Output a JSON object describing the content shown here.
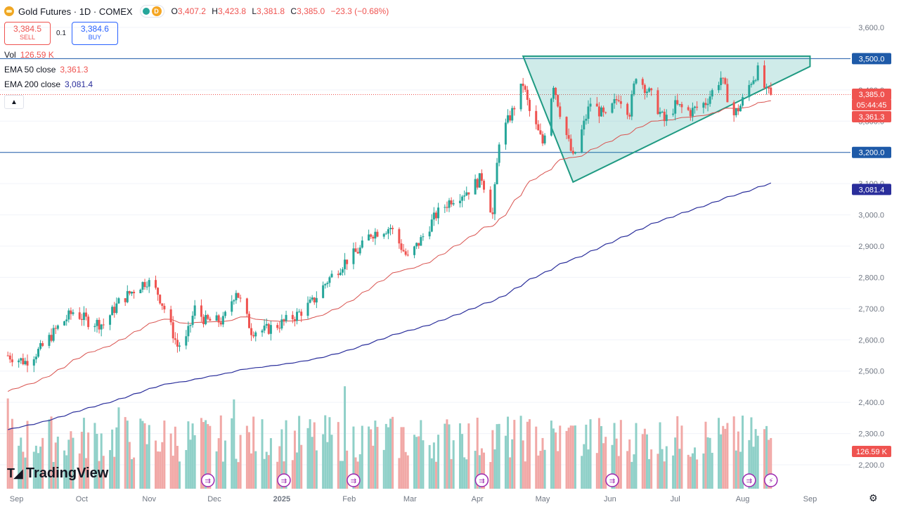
{
  "header": {
    "title": "Gold Futures · 1D · COMEX",
    "delay_badge": "D",
    "ohlc": {
      "o_label": "O",
      "o": "3,407.2",
      "h_label": "H",
      "h": "3,423.8",
      "l_label": "L",
      "l": "3,381.8",
      "c_label": "C",
      "c": "3,385.0",
      "change": "−23.3 (−0.68%)"
    }
  },
  "trade": {
    "sell_price": "3,384.5",
    "sell_label": "SELL",
    "spread": "0.1",
    "buy_price": "3,384.6",
    "buy_label": "BUY"
  },
  "indicators": {
    "vol_label": "Vol",
    "vol_value": "126.59 K",
    "ema50_label": "EMA 50 close",
    "ema50_value": "3,361.3",
    "ema200_label": "EMA 200 close",
    "ema200_value": "3,081.4"
  },
  "brand": {
    "name": "TradingView"
  },
  "chart_data": {
    "type": "candlestick",
    "y_axis": {
      "range": [
        2150,
        3650
      ],
      "ticks": [
        "3,600.0",
        "3,500.0",
        "3,400.0",
        "3,300.0",
        "3,200.0",
        "3,100.0",
        "3,000.0",
        "2,900.0",
        "2,800.0",
        "2,700.0",
        "2,600.0",
        "2,500.0",
        "2,400.0",
        "2,300.0",
        "2,200.0"
      ],
      "tick_values": [
        3600,
        3500,
        3400,
        3300,
        3200,
        3100,
        3000,
        2900,
        2800,
        2700,
        2600,
        2500,
        2400,
        2300,
        2200
      ]
    },
    "x_axis": {
      "labels": [
        "Sep",
        "Oct",
        "Nov",
        "Dec",
        "2025",
        "Feb",
        "Mar",
        "Apr",
        "May",
        "Jun",
        "Jul",
        "Aug",
        "Sep"
      ]
    },
    "price_labels": [
      {
        "text": "3,500.0",
        "value": 3500,
        "style": "blue"
      },
      {
        "text": "3,385.0",
        "value": 3385,
        "style": "red"
      },
      {
        "text": "05:44:45",
        "value": 3385,
        "style": "red-sub"
      },
      {
        "text": "3,361.3",
        "value": 3361.3,
        "style": "red"
      },
      {
        "text": "3,200.0",
        "value": 3200,
        "style": "blue"
      },
      {
        "text": "3,081.4",
        "value": 3081.4,
        "style": "navy"
      }
    ],
    "volume_label": "126.59 K",
    "horizontal_levels": [
      3500,
      3200
    ],
    "last_close": 3385.0,
    "triangle": {
      "apex_top_left": [
        "2025-04-22",
        3508
      ],
      "bottom": [
        "2025-05-15",
        3105
      ],
      "right_top": [
        "2025-09-01",
        3508
      ],
      "right_bottom": [
        "2025-09-01",
        3475
      ]
    },
    "ema50": {
      "name": "EMA 50 close",
      "last": 3361.3
    },
    "ema200": {
      "name": "EMA 200 close",
      "last": 3081.4
    },
    "price_path": [
      [
        "2024-08-28",
        2550
      ],
      [
        "2024-09-05",
        2530
      ],
      [
        "2024-09-12",
        2570
      ],
      [
        "2024-09-20",
        2640
      ],
      [
        "2024-09-27",
        2690
      ],
      [
        "2024-10-04",
        2660
      ],
      [
        "2024-10-11",
        2650
      ],
      [
        "2024-10-18",
        2720
      ],
      [
        "2024-10-25",
        2760
      ],
      [
        "2024-10-31",
        2790
      ],
      [
        "2024-11-05",
        2750
      ],
      [
        "2024-11-08",
        2700
      ],
      [
        "2024-11-14",
        2580
      ],
      [
        "2024-11-18",
        2600
      ],
      [
        "2024-11-22",
        2700
      ],
      [
        "2024-11-27",
        2660
      ],
      [
        "2024-12-05",
        2660
      ],
      [
        "2024-12-11",
        2760
      ],
      [
        "2024-12-18",
        2630
      ],
      [
        "2024-12-24",
        2630
      ],
      [
        "2024-12-31",
        2650
      ],
      [
        "2025-01-08",
        2680
      ],
      [
        "2025-01-15",
        2720
      ],
      [
        "2025-01-22",
        2790
      ],
      [
        "2025-01-30",
        2850
      ],
      [
        "2025-02-06",
        2890
      ],
      [
        "2025-02-11",
        2940
      ],
      [
        "2025-02-20",
        2960
      ],
      [
        "2025-02-28",
        2860
      ],
      [
        "2025-03-06",
        2920
      ],
      [
        "2025-03-13",
        3000
      ],
      [
        "2025-03-20",
        3050
      ],
      [
        "2025-03-28",
        3080
      ],
      [
        "2025-04-03",
        3120
      ],
      [
        "2025-04-08",
        3000
      ],
      [
        "2025-04-11",
        3240
      ],
      [
        "2025-04-17",
        3330
      ],
      [
        "2025-04-22",
        3420
      ],
      [
        "2025-04-25",
        3330
      ],
      [
        "2025-05-01",
        3230
      ],
      [
        "2025-05-06",
        3420
      ],
      [
        "2025-05-09",
        3330
      ],
      [
        "2025-05-15",
        3180
      ],
      [
        "2025-05-20",
        3290
      ],
      [
        "2025-05-23",
        3360
      ],
      [
        "2025-05-30",
        3310
      ],
      [
        "2025-06-05",
        3380
      ],
      [
        "2025-06-10",
        3330
      ],
      [
        "2025-06-13",
        3450
      ],
      [
        "2025-06-20",
        3380
      ],
      [
        "2025-06-26",
        3300
      ],
      [
        "2025-07-01",
        3350
      ],
      [
        "2025-07-08",
        3330
      ],
      [
        "2025-07-15",
        3360
      ],
      [
        "2025-07-22",
        3440
      ],
      [
        "2025-07-28",
        3320
      ],
      [
        "2025-07-31",
        3350
      ],
      [
        "2025-08-05",
        3430
      ],
      [
        "2025-08-08",
        3460
      ],
      [
        "2025-08-12",
        3390
      ],
      [
        "2025-08-14",
        3385
      ]
    ],
    "volume": {
      "range": [
        0,
        700000
      ]
    },
    "event_markers": [
      "2024-11-28",
      "2025-01-02",
      "2025-02-03",
      "2025-04-03",
      "2025-06-02",
      "2025-08-04",
      "2025-08-14"
    ]
  }
}
